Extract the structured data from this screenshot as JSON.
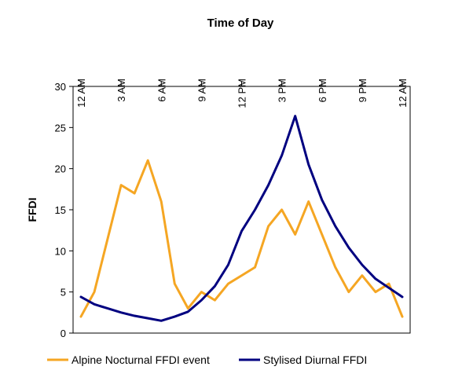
{
  "chart_data": {
    "type": "line",
    "title": "Time of Day",
    "xlabel": "",
    "ylabel": "FFDI",
    "ylim": [
      0,
      30
    ],
    "yticks": [
      "0",
      "5",
      "10",
      "15",
      "20",
      "25",
      "30"
    ],
    "xlim": [
      0,
      24
    ],
    "xtick_labels": [
      "12 AM",
      "3 AM",
      "6 AM",
      "9 AM",
      "12 PM",
      "3 PM",
      "6 PM",
      "9 PM",
      "12 AM"
    ],
    "xtick_hours": [
      0,
      3,
      6,
      9,
      12,
      15,
      18,
      21,
      24
    ],
    "grid": false,
    "legend_position": "bottom",
    "series": [
      {
        "name": "Alpine Nocturnal FFDI event",
        "color": "#F5A623",
        "x": [
          0,
          1,
          2,
          3,
          4,
          5,
          6,
          7,
          8,
          9,
          10,
          11,
          12,
          13,
          14,
          15,
          16,
          17,
          18,
          19,
          20,
          21,
          22,
          23,
          24
        ],
        "values": [
          2,
          5,
          11.5,
          18,
          17,
          21,
          16,
          6,
          3,
          5,
          4,
          6,
          7,
          8,
          13,
          15,
          12,
          16,
          12,
          8,
          5,
          7,
          5,
          6,
          2
        ]
      },
      {
        "name": "Stylised Diurnal FFDI",
        "color": "#000080",
        "x": [
          0,
          1,
          2,
          3,
          4,
          5,
          6,
          7,
          8,
          9,
          10,
          11,
          12,
          13,
          14,
          15,
          16,
          17,
          18,
          19,
          20,
          21,
          22,
          23,
          24
        ],
        "values": [
          4.4,
          3.5,
          3,
          2.5,
          2.1,
          1.8,
          1.5,
          2,
          2.6,
          4,
          5.7,
          8.3,
          12.4,
          15,
          18,
          21.6,
          26.4,
          20.5,
          16.2,
          13,
          10.4,
          8.3,
          6.6,
          5.5,
          4.4
        ]
      }
    ]
  }
}
